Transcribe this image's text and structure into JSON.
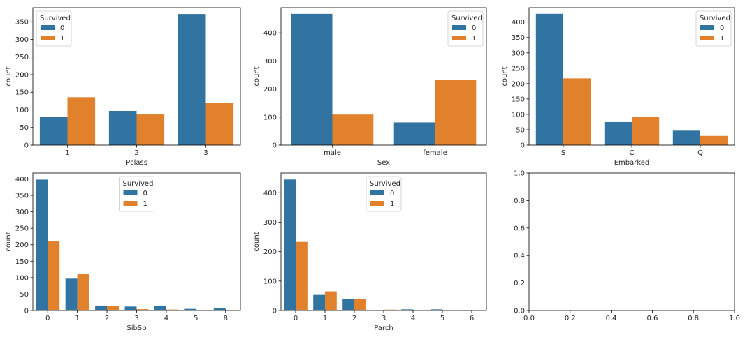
{
  "colors": {
    "series0": "#3274a1",
    "series1": "#e1812c",
    "axes": "#000000",
    "text": "#262626"
  },
  "chart_data": [
    {
      "type": "bar",
      "xlabel": "Pclass",
      "ylabel": "count",
      "legend_title": "Survived",
      "legend_position": "top-left",
      "categories": [
        "1",
        "2",
        "3"
      ],
      "series": [
        {
          "name": "0",
          "values": [
            80,
            97,
            372
          ]
        },
        {
          "name": "1",
          "values": [
            136,
            87,
            119
          ]
        }
      ],
      "ylim": [
        0,
        390
      ],
      "yticks": [
        0,
        50,
        100,
        150,
        200,
        250,
        300,
        350
      ]
    },
    {
      "type": "bar",
      "xlabel": "Sex",
      "ylabel": "count",
      "legend_title": "Survived",
      "legend_position": "top-right",
      "categories": [
        "male",
        "female"
      ],
      "series": [
        {
          "name": "0",
          "values": [
            468,
            81
          ]
        },
        {
          "name": "1",
          "values": [
            109,
            233
          ]
        }
      ],
      "ylim": [
        0,
        490
      ],
      "yticks": [
        0,
        100,
        200,
        300,
        400
      ]
    },
    {
      "type": "bar",
      "xlabel": "Embarked",
      "ylabel": "count",
      "legend_title": "Survived",
      "legend_position": "top-right",
      "categories": [
        "S",
        "C",
        "Q"
      ],
      "series": [
        {
          "name": "0",
          "values": [
            427,
            75,
            47
          ]
        },
        {
          "name": "1",
          "values": [
            217,
            93,
            30
          ]
        }
      ],
      "ylim": [
        0,
        447
      ],
      "yticks": [
        0,
        50,
        100,
        150,
        200,
        250,
        300,
        350,
        400
      ]
    },
    {
      "type": "bar",
      "xlabel": "SibSp",
      "ylabel": "count",
      "legend_title": "Survived",
      "legend_position": "top-center",
      "categories": [
        "0",
        "1",
        "2",
        "3",
        "4",
        "5",
        "8"
      ],
      "series": [
        {
          "name": "0",
          "values": [
            398,
            97,
            15,
            12,
            15,
            5,
            7
          ]
        },
        {
          "name": "1",
          "values": [
            210,
            112,
            13,
            4,
            3,
            0,
            0
          ]
        }
      ],
      "ylim": [
        0,
        418
      ],
      "yticks": [
        0,
        50,
        100,
        150,
        200,
        250,
        300,
        350,
        400
      ]
    },
    {
      "type": "bar",
      "xlabel": "Parch",
      "ylabel": "count",
      "legend_title": "Survived",
      "legend_position": "top-center",
      "categories": [
        "0",
        "1",
        "2",
        "3",
        "4",
        "5",
        "6"
      ],
      "series": [
        {
          "name": "0",
          "values": [
            445,
            53,
            40,
            2,
            4,
            4,
            1
          ]
        },
        {
          "name": "1",
          "values": [
            233,
            65,
            40,
            3,
            0,
            1,
            0
          ]
        }
      ],
      "ylim": [
        0,
        467
      ],
      "yticks": [
        0,
        100,
        200,
        300,
        400
      ]
    },
    {
      "type": "bar",
      "xlabel": "",
      "ylabel": "",
      "categories": [],
      "series": [],
      "xlim": [
        0,
        1
      ],
      "ylim": [
        0,
        1
      ],
      "xticks": [
        "0.0",
        "0.2",
        "0.4",
        "0.6",
        "0.8",
        "1.0"
      ],
      "yticks": [
        "0.0",
        "0.2",
        "0.4",
        "0.6",
        "0.8",
        "1.0"
      ]
    }
  ]
}
